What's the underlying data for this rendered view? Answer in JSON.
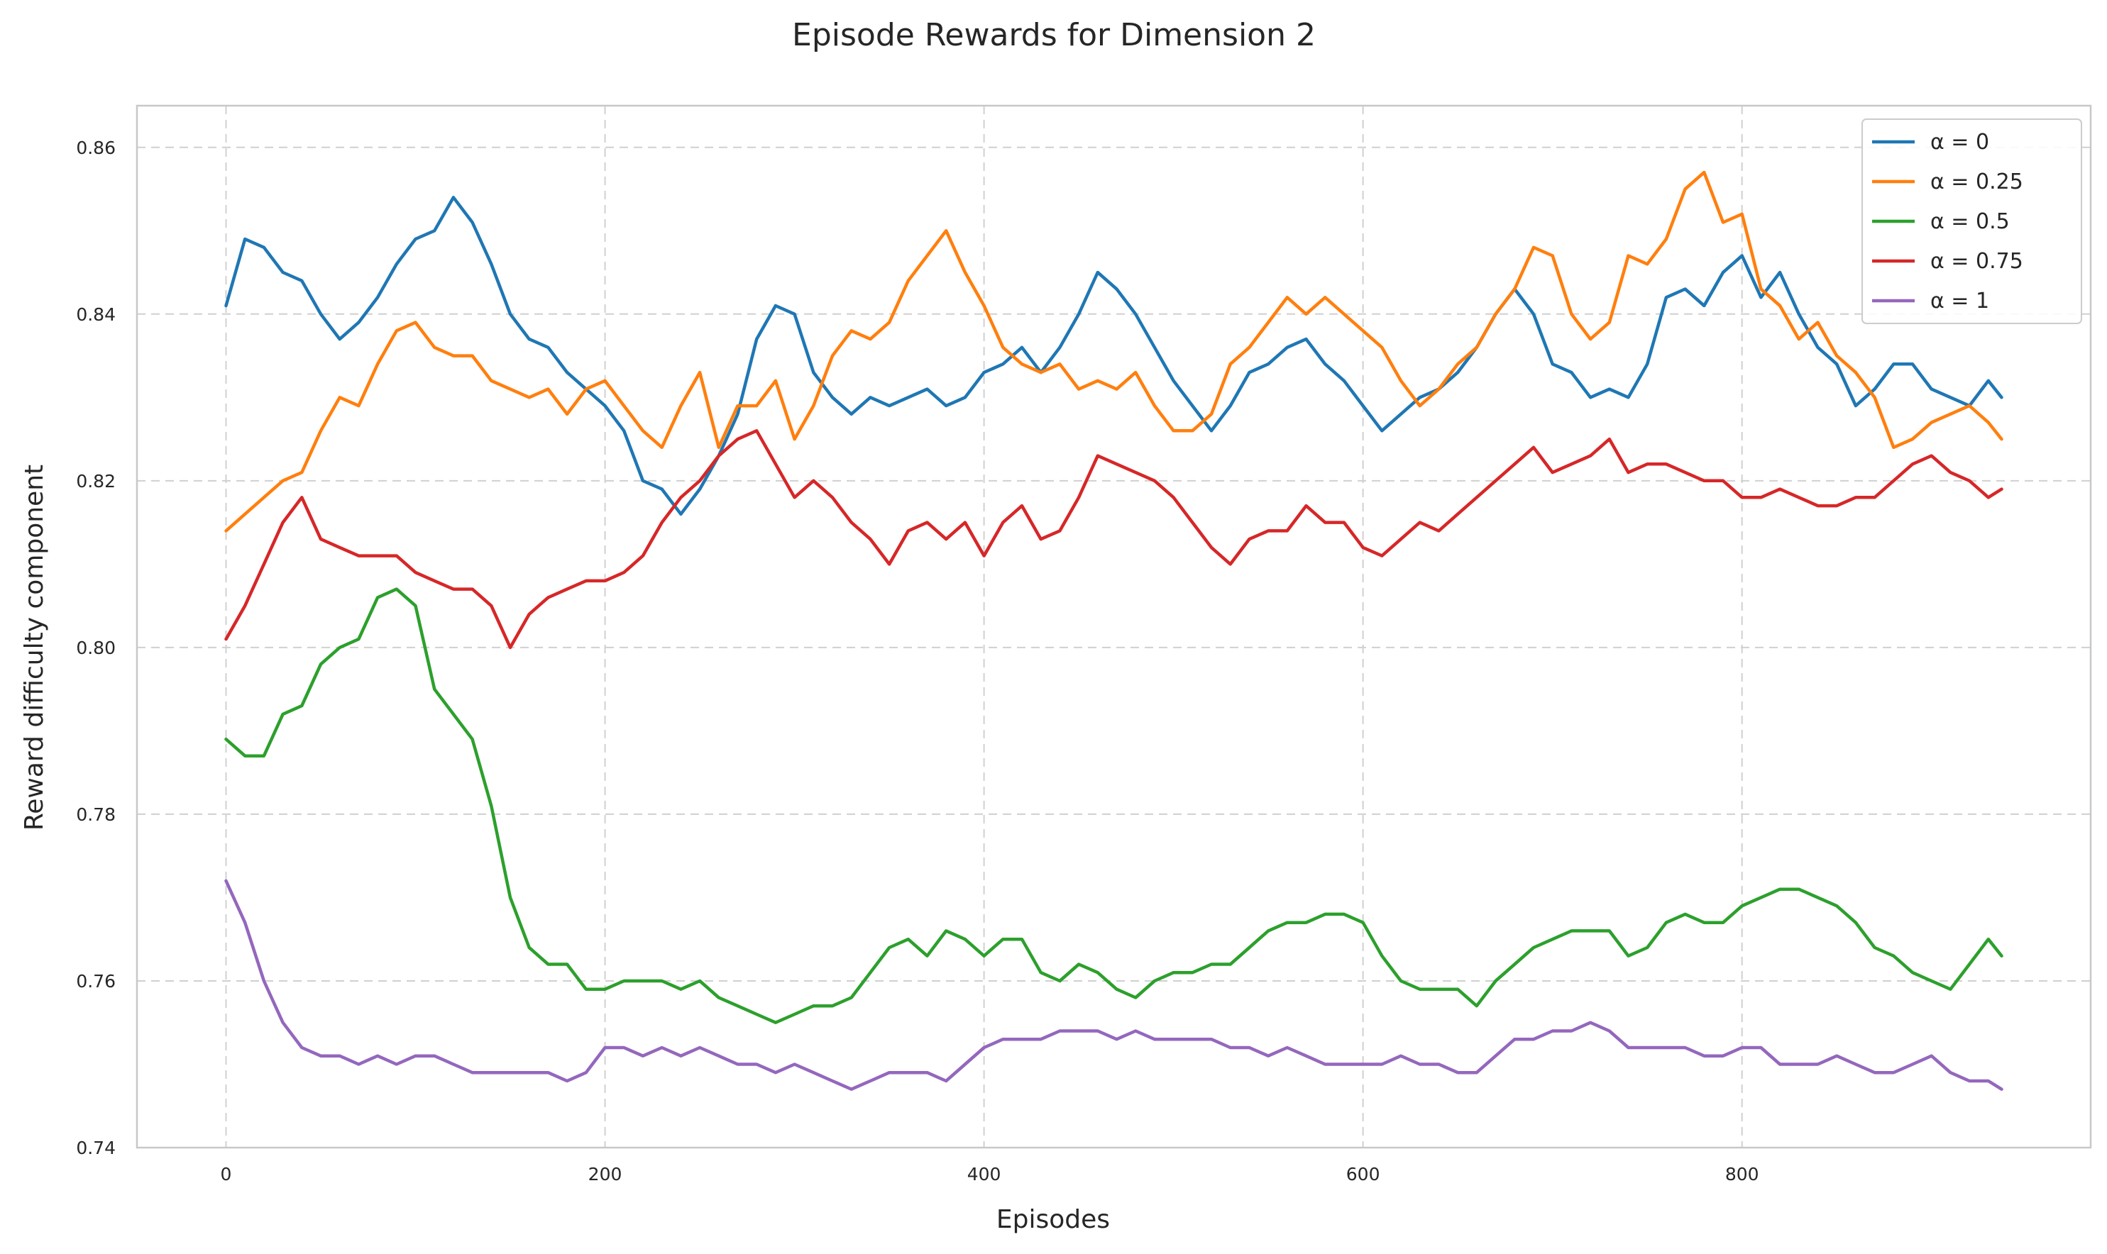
{
  "chart_data": {
    "type": "line",
    "title": "Episode Rewards for Dimension 2",
    "xlabel": "Episodes",
    "ylabel": "Reward difficulty component",
    "xlim": [
      -47,
      984
    ],
    "ylim": [
      0.74,
      0.865
    ],
    "xticks": [
      0,
      200,
      400,
      600,
      800
    ],
    "yticks": [
      0.74,
      0.76,
      0.78,
      0.8,
      0.82,
      0.84,
      0.86
    ],
    "xtick_labels": [
      "0",
      "200",
      "400",
      "600",
      "800"
    ],
    "ytick_labels": [
      "0.74",
      "0.76",
      "0.78",
      "0.80",
      "0.82",
      "0.84",
      "0.86"
    ],
    "grid": true,
    "legend_position": "top-right",
    "series": [
      {
        "name": "α = 0",
        "color": "#1f77b4",
        "x": [
          0,
          10,
          20,
          30,
          40,
          50,
          60,
          70,
          80,
          90,
          100,
          110,
          120,
          130,
          140,
          150,
          160,
          170,
          180,
          190,
          200,
          210,
          220,
          230,
          240,
          250,
          260,
          270,
          280,
          290,
          300,
          310,
          320,
          330,
          340,
          350,
          360,
          370,
          380,
          390,
          400,
          410,
          420,
          430,
          440,
          450,
          460,
          470,
          480,
          490,
          500,
          510,
          520,
          530,
          540,
          550,
          560,
          570,
          580,
          590,
          600,
          610,
          620,
          630,
          640,
          650,
          660,
          670,
          680,
          690,
          700,
          710,
          720,
          730,
          740,
          750,
          760,
          770,
          780,
          790,
          800,
          810,
          820,
          830,
          840,
          850,
          860,
          870,
          880,
          890,
          900,
          910,
          920,
          930,
          937
        ],
        "values": [
          0.841,
          0.849,
          0.848,
          0.845,
          0.844,
          0.84,
          0.837,
          0.839,
          0.842,
          0.846,
          0.849,
          0.85,
          0.854,
          0.851,
          0.846,
          0.84,
          0.837,
          0.836,
          0.833,
          0.831,
          0.829,
          0.826,
          0.82,
          0.819,
          0.816,
          0.819,
          0.823,
          0.828,
          0.837,
          0.841,
          0.84,
          0.833,
          0.83,
          0.828,
          0.83,
          0.829,
          0.83,
          0.831,
          0.829,
          0.83,
          0.833,
          0.834,
          0.836,
          0.833,
          0.836,
          0.84,
          0.845,
          0.843,
          0.84,
          0.836,
          0.832,
          0.829,
          0.826,
          0.829,
          0.833,
          0.834,
          0.836,
          0.837,
          0.834,
          0.832,
          0.829,
          0.826,
          0.828,
          0.83,
          0.831,
          0.833,
          0.836,
          0.84,
          0.843,
          0.84,
          0.834,
          0.833,
          0.83,
          0.831,
          0.83,
          0.834,
          0.842,
          0.843,
          0.841,
          0.845,
          0.847,
          0.842,
          0.845,
          0.84,
          0.836,
          0.834,
          0.829,
          0.831,
          0.834,
          0.834,
          0.831,
          0.83,
          0.829,
          0.832,
          0.83
        ]
      },
      {
        "name": "α = 0.25",
        "color": "#ff7f0e",
        "x": [
          0,
          10,
          20,
          30,
          40,
          50,
          60,
          70,
          80,
          90,
          100,
          110,
          120,
          130,
          140,
          150,
          160,
          170,
          180,
          190,
          200,
          210,
          220,
          230,
          240,
          250,
          260,
          270,
          280,
          290,
          300,
          310,
          320,
          330,
          340,
          350,
          360,
          370,
          380,
          390,
          400,
          410,
          420,
          430,
          440,
          450,
          460,
          470,
          480,
          490,
          500,
          510,
          520,
          530,
          540,
          550,
          560,
          570,
          580,
          590,
          600,
          610,
          620,
          630,
          640,
          650,
          660,
          670,
          680,
          690,
          700,
          710,
          720,
          730,
          740,
          750,
          760,
          770,
          780,
          790,
          800,
          810,
          820,
          830,
          840,
          850,
          860,
          870,
          880,
          890,
          900,
          910,
          920,
          930,
          937
        ],
        "values": [
          0.814,
          0.816,
          0.818,
          0.82,
          0.821,
          0.826,
          0.83,
          0.829,
          0.834,
          0.838,
          0.839,
          0.836,
          0.835,
          0.835,
          0.832,
          0.831,
          0.83,
          0.831,
          0.828,
          0.831,
          0.832,
          0.829,
          0.826,
          0.824,
          0.829,
          0.833,
          0.824,
          0.829,
          0.829,
          0.832,
          0.825,
          0.829,
          0.835,
          0.838,
          0.837,
          0.839,
          0.844,
          0.847,
          0.85,
          0.845,
          0.841,
          0.836,
          0.834,
          0.833,
          0.834,
          0.831,
          0.832,
          0.831,
          0.833,
          0.829,
          0.826,
          0.826,
          0.828,
          0.834,
          0.836,
          0.839,
          0.842,
          0.84,
          0.842,
          0.84,
          0.838,
          0.836,
          0.832,
          0.829,
          0.831,
          0.834,
          0.836,
          0.84,
          0.843,
          0.848,
          0.847,
          0.84,
          0.837,
          0.839,
          0.847,
          0.846,
          0.849,
          0.855,
          0.857,
          0.851,
          0.852,
          0.843,
          0.841,
          0.837,
          0.839,
          0.835,
          0.833,
          0.83,
          0.824,
          0.825,
          0.827,
          0.828,
          0.829,
          0.827,
          0.825
        ]
      },
      {
        "name": "α = 0.5",
        "color": "#2ca02c",
        "x": [
          0,
          10,
          20,
          30,
          40,
          50,
          60,
          70,
          80,
          90,
          100,
          110,
          120,
          130,
          140,
          150,
          160,
          170,
          180,
          190,
          200,
          210,
          220,
          230,
          240,
          250,
          260,
          270,
          280,
          290,
          300,
          310,
          320,
          330,
          340,
          350,
          360,
          370,
          380,
          390,
          400,
          410,
          420,
          430,
          440,
          450,
          460,
          470,
          480,
          490,
          500,
          510,
          520,
          530,
          540,
          550,
          560,
          570,
          580,
          590,
          600,
          610,
          620,
          630,
          640,
          650,
          660,
          670,
          680,
          690,
          700,
          710,
          720,
          730,
          740,
          750,
          760,
          770,
          780,
          790,
          800,
          810,
          820,
          830,
          840,
          850,
          860,
          870,
          880,
          890,
          900,
          910,
          920,
          930,
          937
        ],
        "values": [
          0.789,
          0.787,
          0.787,
          0.792,
          0.793,
          0.798,
          0.8,
          0.801,
          0.806,
          0.807,
          0.805,
          0.795,
          0.792,
          0.789,
          0.781,
          0.77,
          0.764,
          0.762,
          0.762,
          0.759,
          0.759,
          0.76,
          0.76,
          0.76,
          0.759,
          0.76,
          0.758,
          0.757,
          0.756,
          0.755,
          0.756,
          0.757,
          0.757,
          0.758,
          0.761,
          0.764,
          0.765,
          0.763,
          0.766,
          0.765,
          0.763,
          0.765,
          0.765,
          0.761,
          0.76,
          0.762,
          0.761,
          0.759,
          0.758,
          0.76,
          0.761,
          0.761,
          0.762,
          0.762,
          0.764,
          0.766,
          0.767,
          0.767,
          0.768,
          0.768,
          0.767,
          0.763,
          0.76,
          0.759,
          0.759,
          0.759,
          0.757,
          0.76,
          0.762,
          0.764,
          0.765,
          0.766,
          0.766,
          0.766,
          0.763,
          0.764,
          0.767,
          0.768,
          0.767,
          0.767,
          0.769,
          0.77,
          0.771,
          0.771,
          0.77,
          0.769,
          0.767,
          0.764,
          0.763,
          0.761,
          0.76,
          0.759,
          0.762,
          0.765,
          0.763
        ]
      },
      {
        "name": "α = 0.75",
        "color": "#d62728",
        "x": [
          0,
          10,
          20,
          30,
          40,
          50,
          60,
          70,
          80,
          90,
          100,
          110,
          120,
          130,
          140,
          150,
          160,
          170,
          180,
          190,
          200,
          210,
          220,
          230,
          240,
          250,
          260,
          270,
          280,
          290,
          300,
          310,
          320,
          330,
          340,
          350,
          360,
          370,
          380,
          390,
          400,
          410,
          420,
          430,
          440,
          450,
          460,
          470,
          480,
          490,
          500,
          510,
          520,
          530,
          540,
          550,
          560,
          570,
          580,
          590,
          600,
          610,
          620,
          630,
          640,
          650,
          660,
          670,
          680,
          690,
          700,
          710,
          720,
          730,
          740,
          750,
          760,
          770,
          780,
          790,
          800,
          810,
          820,
          830,
          840,
          850,
          860,
          870,
          880,
          890,
          900,
          910,
          920,
          930,
          937
        ],
        "values": [
          0.801,
          0.805,
          0.81,
          0.815,
          0.818,
          0.813,
          0.812,
          0.811,
          0.811,
          0.811,
          0.809,
          0.808,
          0.807,
          0.807,
          0.805,
          0.8,
          0.804,
          0.806,
          0.807,
          0.808,
          0.808,
          0.809,
          0.811,
          0.815,
          0.818,
          0.82,
          0.823,
          0.825,
          0.826,
          0.822,
          0.818,
          0.82,
          0.818,
          0.815,
          0.813,
          0.81,
          0.814,
          0.815,
          0.813,
          0.815,
          0.811,
          0.815,
          0.817,
          0.813,
          0.814,
          0.818,
          0.823,
          0.822,
          0.821,
          0.82,
          0.818,
          0.815,
          0.812,
          0.81,
          0.813,
          0.814,
          0.814,
          0.817,
          0.815,
          0.815,
          0.812,
          0.811,
          0.813,
          0.815,
          0.814,
          0.816,
          0.818,
          0.82,
          0.822,
          0.824,
          0.821,
          0.822,
          0.823,
          0.825,
          0.821,
          0.822,
          0.822,
          0.821,
          0.82,
          0.82,
          0.818,
          0.818,
          0.819,
          0.818,
          0.817,
          0.817,
          0.818,
          0.818,
          0.82,
          0.822,
          0.823,
          0.821,
          0.82,
          0.818,
          0.819
        ]
      },
      {
        "name": "α = 1",
        "color": "#9467bd",
        "x": [
          0,
          10,
          20,
          30,
          40,
          50,
          60,
          70,
          80,
          90,
          100,
          110,
          120,
          130,
          140,
          150,
          160,
          170,
          180,
          190,
          200,
          210,
          220,
          230,
          240,
          250,
          260,
          270,
          280,
          290,
          300,
          310,
          320,
          330,
          340,
          350,
          360,
          370,
          380,
          390,
          400,
          410,
          420,
          430,
          440,
          450,
          460,
          470,
          480,
          490,
          500,
          510,
          520,
          530,
          540,
          550,
          560,
          570,
          580,
          590,
          600,
          610,
          620,
          630,
          640,
          650,
          660,
          670,
          680,
          690,
          700,
          710,
          720,
          730,
          740,
          750,
          760,
          770,
          780,
          790,
          800,
          810,
          820,
          830,
          840,
          850,
          860,
          870,
          880,
          890,
          900,
          910,
          920,
          930,
          937
        ],
        "values": [
          0.772,
          0.767,
          0.76,
          0.755,
          0.752,
          0.751,
          0.751,
          0.75,
          0.751,
          0.75,
          0.751,
          0.751,
          0.75,
          0.749,
          0.749,
          0.749,
          0.749,
          0.749,
          0.748,
          0.749,
          0.752,
          0.752,
          0.751,
          0.752,
          0.751,
          0.752,
          0.751,
          0.75,
          0.75,
          0.749,
          0.75,
          0.749,
          0.748,
          0.747,
          0.748,
          0.749,
          0.749,
          0.749,
          0.748,
          0.75,
          0.752,
          0.753,
          0.753,
          0.753,
          0.754,
          0.754,
          0.754,
          0.753,
          0.754,
          0.753,
          0.753,
          0.753,
          0.753,
          0.752,
          0.752,
          0.751,
          0.752,
          0.751,
          0.75,
          0.75,
          0.75,
          0.75,
          0.751,
          0.75,
          0.75,
          0.749,
          0.749,
          0.751,
          0.753,
          0.753,
          0.754,
          0.754,
          0.755,
          0.754,
          0.752,
          0.752,
          0.752,
          0.752,
          0.751,
          0.751,
          0.752,
          0.752,
          0.75,
          0.75,
          0.75,
          0.751,
          0.75,
          0.749,
          0.749,
          0.75,
          0.751,
          0.749,
          0.748,
          0.748,
          0.747
        ]
      }
    ]
  }
}
